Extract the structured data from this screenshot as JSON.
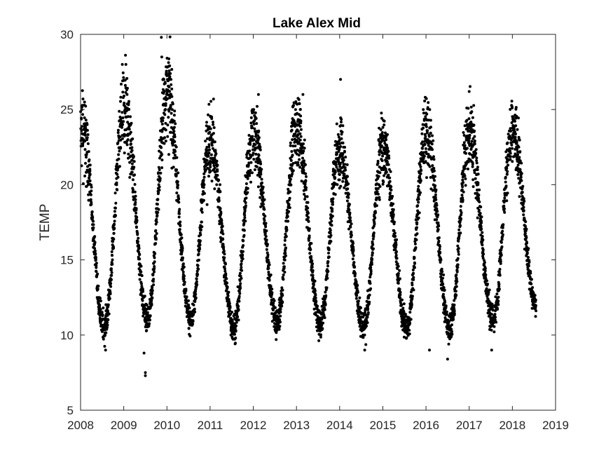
{
  "chart_data": {
    "type": "scatter",
    "title": "Lake Alex Mid",
    "xlabel": "",
    "ylabel": "TEMP",
    "xlim": [
      2008,
      2019
    ],
    "ylim": [
      5,
      30
    ],
    "x_ticks": [
      "2008",
      "2009",
      "2010",
      "2011",
      "2012",
      "2013",
      "2014",
      "2015",
      "2016",
      "2017",
      "2018",
      "2019"
    ],
    "y_ticks": [
      "5",
      "10",
      "15",
      "20",
      "25",
      "30"
    ],
    "grid": false,
    "legend": "none",
    "marker_color": "#000000",
    "series": [
      {
        "marker": "dot",
        "x_start": 2008.0,
        "x_end": 2018.55,
        "seasonal_peaks": [
          {
            "year_fraction": 2008.04,
            "y": 23.5
          },
          {
            "year_fraction": 2009.02,
            "y": 25.0
          },
          {
            "year_fraction": 2010.0,
            "y": 26.0
          },
          {
            "year_fraction": 2011.0,
            "y": 23.0
          },
          {
            "year_fraction": 2012.0,
            "y": 23.5
          },
          {
            "year_fraction": 2013.0,
            "y": 24.0
          },
          {
            "year_fraction": 2014.0,
            "y": 22.5
          },
          {
            "year_fraction": 2015.0,
            "y": 22.5
          },
          {
            "year_fraction": 2016.0,
            "y": 23.5
          },
          {
            "year_fraction": 2017.0,
            "y": 23.5
          },
          {
            "year_fraction": 2018.0,
            "y": 23.5
          }
        ],
        "seasonal_troughs": [
          {
            "year_fraction": 2008.55,
            "y": 10.5
          },
          {
            "year_fraction": 2009.55,
            "y": 11.0
          },
          {
            "year_fraction": 2010.55,
            "y": 11.0
          },
          {
            "year_fraction": 2011.55,
            "y": 10.5
          },
          {
            "year_fraction": 2012.55,
            "y": 10.8
          },
          {
            "year_fraction": 2013.55,
            "y": 10.8
          },
          {
            "year_fraction": 2014.55,
            "y": 10.5
          },
          {
            "year_fraction": 2015.55,
            "y": 10.5
          },
          {
            "year_fraction": 2016.55,
            "y": 10.5
          },
          {
            "year_fraction": 2017.55,
            "y": 11.0
          },
          {
            "year_fraction": 2018.55,
            "y": 12.0
          }
        ],
        "extremes": [
          {
            "x": 2009.05,
            "y": 28.0
          },
          {
            "x": 2009.87,
            "y": 29.8
          },
          {
            "x": 2009.88,
            "y": 28.5
          },
          {
            "x": 2010.05,
            "y": 27.4
          },
          {
            "x": 2011.08,
            "y": 25.7
          },
          {
            "x": 2012.12,
            "y": 26.0
          },
          {
            "x": 2013.15,
            "y": 26.0
          },
          {
            "x": 2014.02,
            "y": 27.0
          },
          {
            "x": 2017.0,
            "y": 26.2
          },
          {
            "x": 2009.47,
            "y": 8.8
          },
          {
            "x": 2009.5,
            "y": 7.5
          },
          {
            "x": 2009.5,
            "y": 7.3
          },
          {
            "x": 2008.58,
            "y": 9.0
          },
          {
            "x": 2014.58,
            "y": 9.0
          },
          {
            "x": 2016.5,
            "y": 8.4
          },
          {
            "x": 2016.08,
            "y": 9.0
          },
          {
            "x": 2017.52,
            "y": 9.0
          }
        ]
      }
    ]
  }
}
